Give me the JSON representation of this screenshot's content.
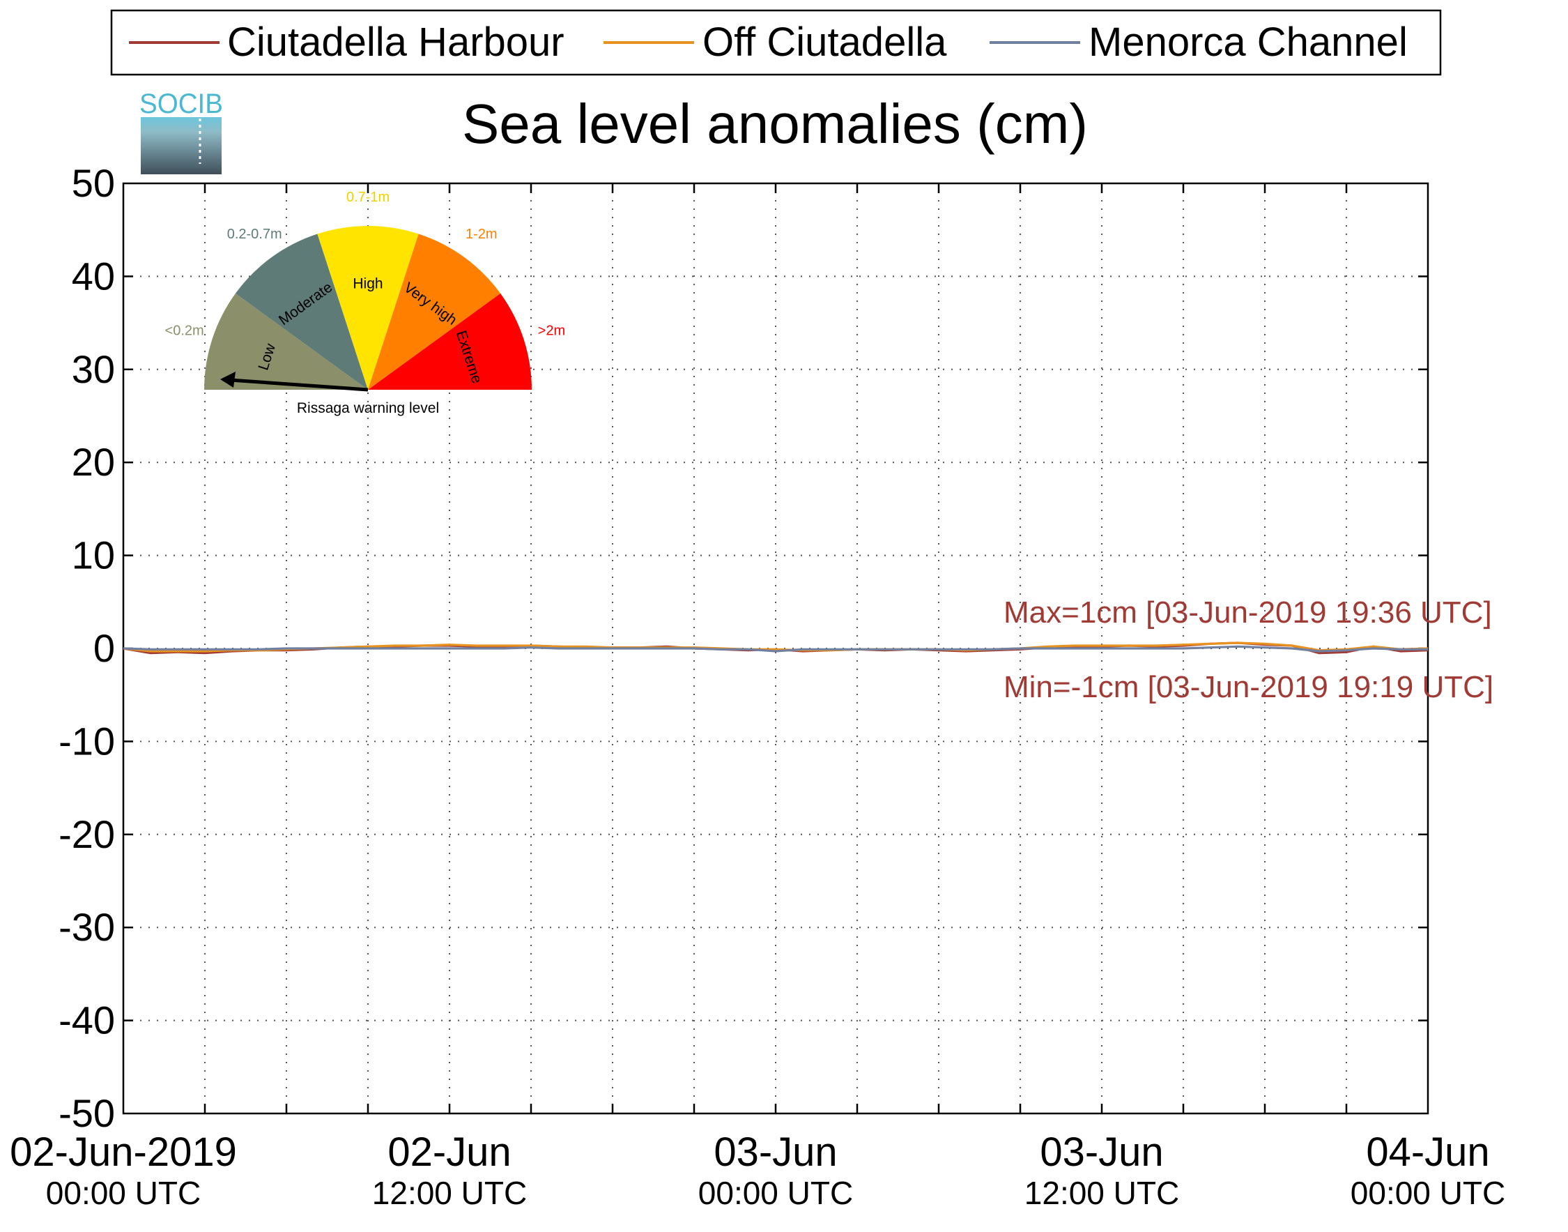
{
  "legend": {
    "entries": [
      {
        "label": "Ciutadella Harbour",
        "color": "#a03a34"
      },
      {
        "label": "Off Ciutadella",
        "color": "#e8921f"
      },
      {
        "label": "Menorca Channel",
        "color": "#7080a0"
      }
    ]
  },
  "logo": {
    "text": "SOCIB"
  },
  "gauge": {
    "caption": "Rissaga warning level",
    "current_level": "Low",
    "sectors": [
      {
        "name": "Low",
        "range": "<0.2m",
        "color": "#8b8f6a",
        "range_color": "#8b8f6a"
      },
      {
        "name": "Moderate",
        "range": "0.2-0.7m",
        "color": "#5e7b78",
        "range_color": "#5e7b78"
      },
      {
        "name": "High",
        "range": "0.7-1m",
        "color": "#ffe400",
        "range_color": "#f0d000"
      },
      {
        "name": "Very high",
        "range": "1-2m",
        "color": "#ff8000",
        "range_color": "#ff8000"
      },
      {
        "name": "Extreme",
        "range": ">2m",
        "color": "#ff0000",
        "range_color": "#ff0000"
      }
    ]
  },
  "annotations": {
    "max": "Max=1cm [03-Jun-2019 19:36 UTC]",
    "min": "Min=-1cm [03-Jun-2019 19:19 UTC]",
    "color": "#a03a34"
  },
  "chart_data": {
    "type": "line",
    "title": "Sea level anomalies (cm)",
    "xlabel": "",
    "ylabel": "",
    "ylim": [
      -50,
      50
    ],
    "yticks": [
      -50,
      -40,
      -30,
      -20,
      -10,
      0,
      10,
      20,
      30,
      40,
      50
    ],
    "xlim": [
      "2019-06-02T00:00Z",
      "2019-06-04T00:00Z"
    ],
    "xtick_labels": [
      {
        "x": "2019-06-02T00:00Z",
        "line1": "02-Jun-2019",
        "line2": "00:00 UTC"
      },
      {
        "x": "2019-06-02T12:00Z",
        "line1": "02-Jun",
        "line2": "12:00 UTC"
      },
      {
        "x": "2019-06-03T00:00Z",
        "line1": "03-Jun",
        "line2": "00:00 UTC"
      },
      {
        "x": "2019-06-03T12:00Z",
        "line1": "03-Jun",
        "line2": "12:00 UTC"
      },
      {
        "x": "2019-06-04T00:00Z",
        "line1": "04-Jun",
        "line2": "00:00 UTC"
      }
    ],
    "grid": true,
    "legend_position": "top",
    "x_units": "hours since 02-Jun-2019 00:00 UTC",
    "series": [
      {
        "name": "Ciutadella Harbour",
        "x": [
          0,
          1,
          2,
          3,
          4,
          5,
          6,
          7,
          8,
          9,
          10,
          11,
          12,
          13,
          14,
          15,
          16,
          17,
          18,
          19,
          20,
          21,
          22,
          23,
          24,
          25,
          26,
          27,
          28,
          29,
          30,
          31,
          32,
          33,
          34,
          35,
          36,
          37,
          38,
          39,
          40,
          41,
          42,
          43,
          44,
          45,
          46,
          47,
          48
        ],
        "y": [
          0,
          -0.5,
          -0.4,
          -0.5,
          -0.3,
          -0.2,
          -0.2,
          -0.1,
          0.1,
          0.2,
          0.2,
          0.3,
          0.3,
          0.2,
          0.2,
          0.3,
          0.2,
          0.1,
          0.1,
          0.1,
          0.2,
          0,
          -0.1,
          -0.2,
          -0.1,
          -0.3,
          -0.2,
          -0.1,
          -0.2,
          -0.1,
          -0.2,
          -0.3,
          -0.2,
          -0.1,
          0.1,
          0.2,
          0.2,
          0.3,
          0.2,
          0.3,
          0.5,
          0.6,
          0.4,
          0.3,
          -0.5,
          -0.4,
          0.2,
          -0.3,
          -0.2
        ]
      },
      {
        "name": "Off Ciutadella",
        "x": [
          0,
          1,
          2,
          3,
          4,
          5,
          6,
          7,
          8,
          9,
          10,
          11,
          12,
          13,
          14,
          15,
          16,
          17,
          18,
          19,
          20,
          21,
          22,
          23,
          24,
          25,
          26,
          27,
          28,
          29,
          30,
          31,
          32,
          33,
          34,
          35,
          36,
          37,
          38,
          39,
          40,
          41,
          42,
          43,
          44,
          45,
          46,
          47,
          48
        ],
        "y": [
          0,
          -0.3,
          -0.3,
          -0.3,
          -0.2,
          -0.2,
          -0.1,
          0,
          0.1,
          0.2,
          0.3,
          0.3,
          0.4,
          0.3,
          0.3,
          0.3,
          0.2,
          0.2,
          0.1,
          0.1,
          0.1,
          0.1,
          0,
          -0.1,
          -0.1,
          -0.2,
          -0.2,
          -0.1,
          -0.1,
          -0.1,
          -0.1,
          -0.2,
          -0.1,
          0,
          0.2,
          0.3,
          0.3,
          0.3,
          0.3,
          0.4,
          0.5,
          0.6,
          0.5,
          0.3,
          -0.2,
          -0.1,
          0.2,
          -0.1,
          0
        ]
      },
      {
        "name": "Menorca Channel",
        "x": [
          0,
          1,
          2,
          3,
          4,
          5,
          6,
          7,
          8,
          9,
          10,
          11,
          12,
          13,
          14,
          15,
          16,
          17,
          18,
          19,
          20,
          21,
          22,
          23,
          24,
          25,
          26,
          27,
          28,
          29,
          30,
          31,
          32,
          33,
          34,
          35,
          36,
          37,
          38,
          39,
          40,
          41,
          42,
          43,
          44,
          45,
          46,
          47,
          48
        ],
        "y": [
          0,
          -0.1,
          -0.1,
          -0.1,
          -0.1,
          -0.1,
          0,
          0,
          0,
          0,
          0,
          0,
          0,
          0,
          0,
          0.1,
          0,
          0,
          0,
          0,
          0,
          0,
          -0.1,
          -0.1,
          -0.3,
          -0.1,
          -0.1,
          -0.1,
          -0.1,
          -0.1,
          -0.1,
          -0.1,
          -0.1,
          0,
          0,
          0,
          0,
          0,
          0,
          0,
          0.1,
          0.2,
          0.1,
          0,
          -0.3,
          -0.2,
          0,
          -0.1,
          -0.1
        ]
      }
    ]
  }
}
